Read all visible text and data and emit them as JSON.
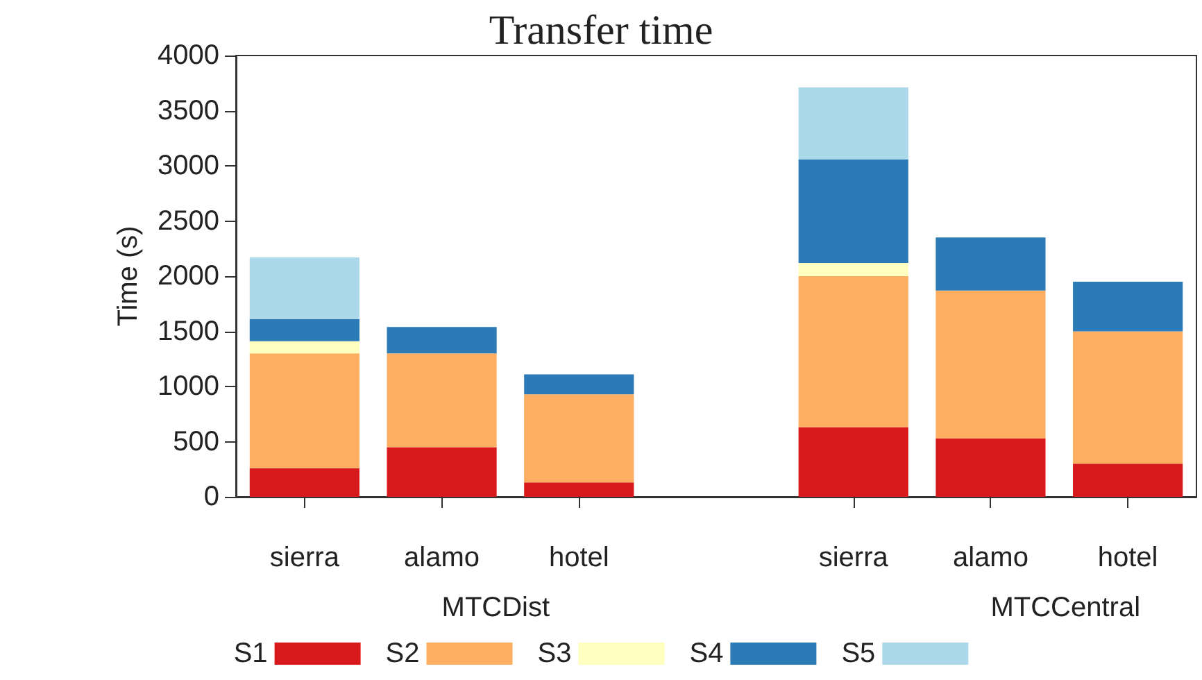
{
  "chart_data": {
    "type": "bar",
    "title": "Transfer time",
    "ylabel": "Time (s)",
    "categories": [
      "sierra",
      "alamo",
      "hotel",
      null,
      "sierra",
      "alamo",
      "hotel"
    ],
    "stacked": true,
    "series": [
      {
        "name": "S1",
        "color": "#d7191c",
        "values": [
          260,
          450,
          130,
          null,
          630,
          530,
          300
        ]
      },
      {
        "name": "S2",
        "color": "#fdae61",
        "values": [
          1040,
          850,
          800,
          null,
          1370,
          1340,
          1200
        ]
      },
      {
        "name": "S3",
        "color": "#ffffbf",
        "values": [
          110,
          null,
          null,
          null,
          120,
          null,
          null
        ]
      },
      {
        "name": "S4",
        "color": "#2c7bb6",
        "values": [
          200,
          240,
          180,
          null,
          940,
          480,
          450
        ]
      },
      {
        "name": "S5",
        "color": "#abd9e9",
        "values": [
          560,
          null,
          null,
          null,
          650,
          null,
          null
        ]
      }
    ],
    "ylim": [
      0,
      4000
    ],
    "yticks": [
      0,
      500,
      1000,
      1500,
      2000,
      2500,
      3000,
      3500,
      4000
    ],
    "annotations": [
      "MTCDist",
      "MTCCentral"
    ],
    "grid": false,
    "legend": "bottom"
  }
}
